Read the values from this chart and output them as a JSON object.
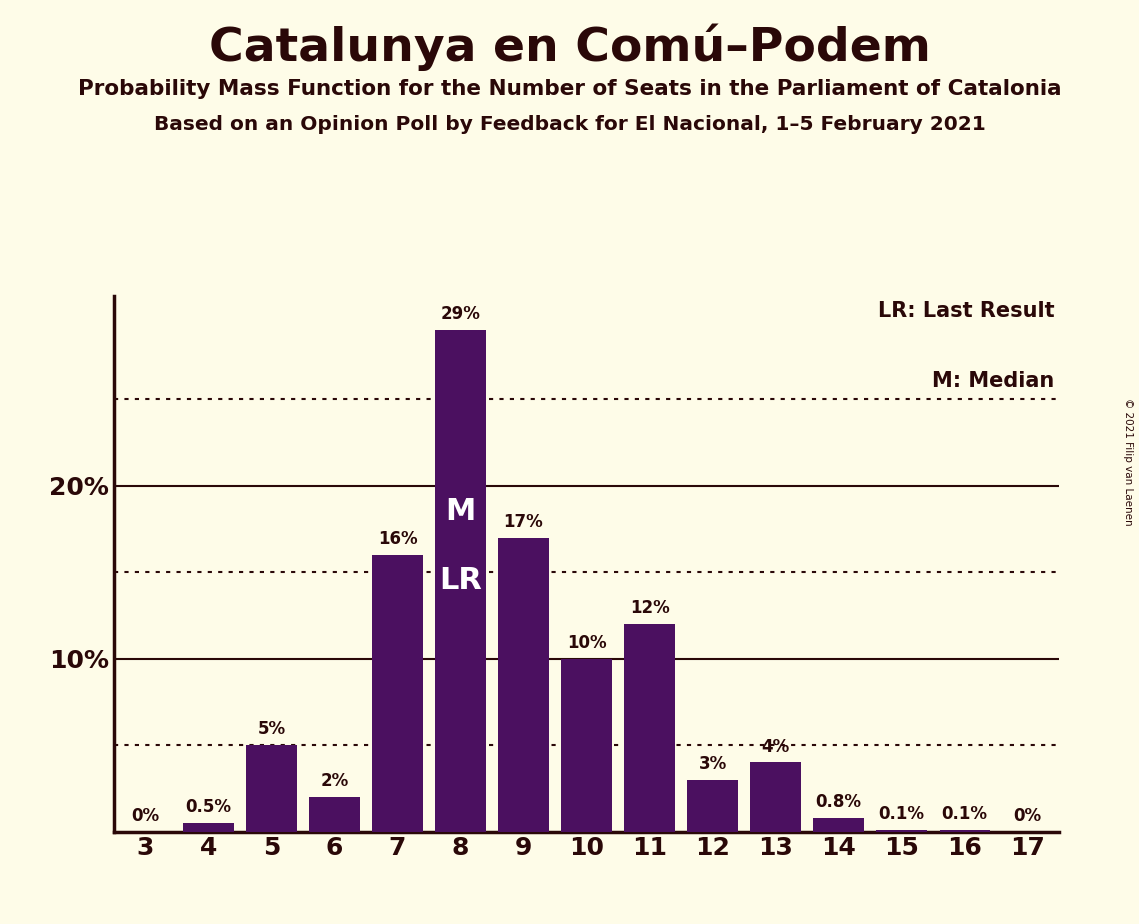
{
  "title": "Catalunya en Comú–Podem",
  "subtitle1": "Probability Mass Function for the Number of Seats in the Parliament of Catalonia",
  "subtitle2": "Based on an Opinion Poll by Feedback for El Nacional, 1–5 February 2021",
  "copyright": "© 2021 Filip van Laenen",
  "categories": [
    3,
    4,
    5,
    6,
    7,
    8,
    9,
    10,
    11,
    12,
    13,
    14,
    15,
    16,
    17
  ],
  "values": [
    0.0,
    0.5,
    5.0,
    2.0,
    16.0,
    29.0,
    17.0,
    10.0,
    12.0,
    3.0,
    4.0,
    0.8,
    0.1,
    0.1,
    0.0
  ],
  "labels": [
    "0%",
    "0.5%",
    "5%",
    "2%",
    "16%",
    "29%",
    "17%",
    "10%",
    "12%",
    "3%",
    "4%",
    "0.8%",
    "0.1%",
    "0.1%",
    "0%"
  ],
  "bar_color": "#4b1060",
  "background_color": "#fefce8",
  "axis_color": "#2a0808",
  "text_color": "#2a0808",
  "median_bar": 8,
  "lr_bar": 8,
  "legend_lr": "LR: Last Result",
  "legend_m": "M: Median",
  "dotted_lines": [
    5,
    15,
    25
  ],
  "solid_lines": [
    10,
    20
  ],
  "ylim": [
    0,
    31
  ],
  "figsize": [
    11.39,
    9.24
  ],
  "dpi": 100
}
